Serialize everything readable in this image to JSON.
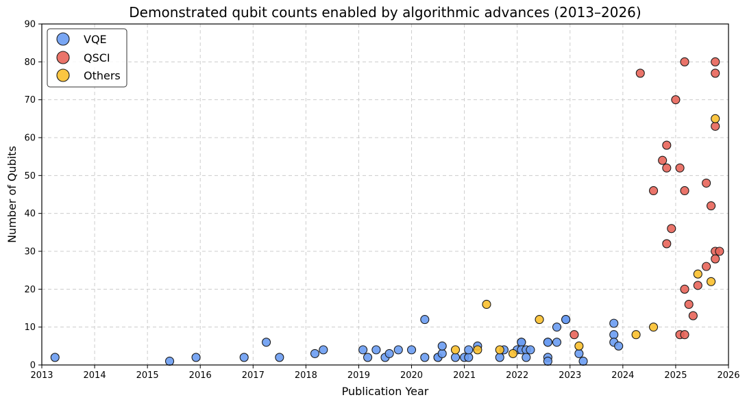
{
  "chart_data": {
    "type": "scatter",
    "title": "Demonstrated qubit counts enabled by algorithmic advances (2013–2026)",
    "xlabel": "Publication Year",
    "ylabel": "Number of Qubits",
    "xlim": [
      2013,
      2026
    ],
    "ylim": [
      0,
      90
    ],
    "xticks": [
      "2013",
      "2014",
      "2015",
      "2016",
      "2017",
      "2018",
      "2019",
      "2020",
      "2021",
      "2022",
      "2023",
      "2024",
      "2025",
      "2026"
    ],
    "yticks": [
      "0",
      "10",
      "20",
      "30",
      "40",
      "50",
      "60",
      "70",
      "80",
      "90"
    ],
    "grid": true,
    "legend_position": "top-left",
    "series": [
      {
        "name": "VQE",
        "color": "#6a9cf2",
        "points": [
          [
            2013.25,
            2
          ],
          [
            2015.42,
            1
          ],
          [
            2015.92,
            2
          ],
          [
            2016.83,
            2
          ],
          [
            2017.25,
            6
          ],
          [
            2017.5,
            2
          ],
          [
            2018.17,
            3
          ],
          [
            2018.33,
            4
          ],
          [
            2019.08,
            4
          ],
          [
            2019.17,
            2
          ],
          [
            2019.33,
            4
          ],
          [
            2019.5,
            2
          ],
          [
            2019.58,
            3
          ],
          [
            2019.75,
            4
          ],
          [
            2020.0,
            4
          ],
          [
            2020.25,
            12
          ],
          [
            2020.25,
            2
          ],
          [
            2020.5,
            2
          ],
          [
            2020.5,
            2
          ],
          [
            2020.58,
            3
          ],
          [
            2020.58,
            5
          ],
          [
            2020.83,
            2
          ],
          [
            2021.0,
            2
          ],
          [
            2021.08,
            2
          ],
          [
            2021.08,
            4
          ],
          [
            2021.25,
            5
          ],
          [
            2021.67,
            2
          ],
          [
            2021.75,
            4
          ],
          [
            2022.0,
            4
          ],
          [
            2022.08,
            6
          ],
          [
            2022.08,
            6
          ],
          [
            2022.08,
            4
          ],
          [
            2022.17,
            4
          ],
          [
            2022.17,
            2
          ],
          [
            2022.25,
            4
          ],
          [
            2022.58,
            6
          ],
          [
            2022.58,
            6
          ],
          [
            2022.58,
            2
          ],
          [
            2022.58,
            1
          ],
          [
            2022.75,
            6
          ],
          [
            2022.75,
            10
          ],
          [
            2022.92,
            12
          ],
          [
            2022.92,
            12
          ],
          [
            2023.17,
            3
          ],
          [
            2023.25,
            1
          ],
          [
            2023.83,
            11
          ],
          [
            2023.83,
            8
          ],
          [
            2023.83,
            6
          ],
          [
            2023.92,
            5
          ]
        ]
      },
      {
        "name": "QSCI",
        "color": "#e8655a",
        "points": [
          [
            2023.08,
            8
          ],
          [
            2024.33,
            77
          ],
          [
            2024.58,
            46
          ],
          [
            2024.75,
            54
          ],
          [
            2024.83,
            58
          ],
          [
            2024.83,
            52
          ],
          [
            2024.83,
            32
          ],
          [
            2024.92,
            36
          ],
          [
            2025.0,
            70
          ],
          [
            2025.08,
            52
          ],
          [
            2025.08,
            8
          ],
          [
            2025.17,
            8
          ],
          [
            2025.17,
            80
          ],
          [
            2025.17,
            46
          ],
          [
            2025.17,
            20
          ],
          [
            2025.25,
            16
          ],
          [
            2025.33,
            13
          ],
          [
            2025.42,
            21
          ],
          [
            2025.58,
            48
          ],
          [
            2025.58,
            26
          ],
          [
            2025.67,
            42
          ],
          [
            2025.75,
            80
          ],
          [
            2025.75,
            77
          ],
          [
            2025.75,
            63
          ],
          [
            2025.75,
            30
          ],
          [
            2025.75,
            28
          ],
          [
            2025.83,
            30
          ]
        ]
      },
      {
        "name": "Others",
        "color": "#fbc02d",
        "points": [
          [
            2020.83,
            4
          ],
          [
            2021.25,
            4
          ],
          [
            2021.42,
            16
          ],
          [
            2021.67,
            4
          ],
          [
            2021.92,
            3
          ],
          [
            2022.42,
            12
          ],
          [
            2023.17,
            5
          ],
          [
            2024.25,
            8
          ],
          [
            2024.58,
            10
          ],
          [
            2025.42,
            24
          ],
          [
            2025.67,
            22
          ],
          [
            2025.75,
            65
          ]
        ]
      }
    ]
  }
}
